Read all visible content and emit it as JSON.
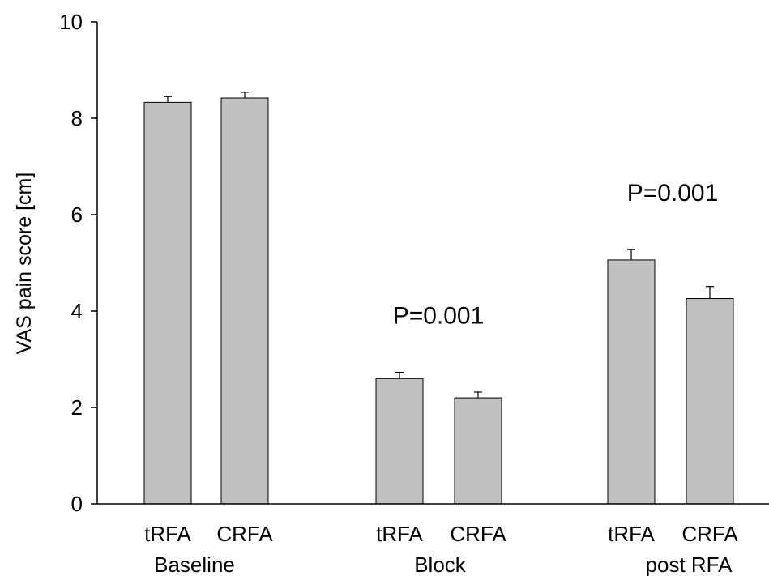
{
  "chart_data": {
    "type": "bar",
    "title": "",
    "ylabel": "VAS pain score [cm]",
    "ylim": [
      0,
      10
    ],
    "yticks": [
      0,
      2,
      4,
      6,
      8,
      10
    ],
    "ytick_labels": [
      "0",
      "2",
      "4",
      "6",
      "8",
      "10"
    ],
    "grid": false,
    "legend": "none",
    "colors": {
      "bar_fill": "#c0c0c0",
      "bar_stroke": "#000000",
      "axis": "#000000"
    },
    "groups": [
      {
        "label": "Baseline",
        "bars": [
          {
            "category": "tRFA",
            "value": 8.33,
            "error": 0.12
          },
          {
            "category": "CRFA",
            "value": 8.42,
            "error": 0.12
          }
        ],
        "annotation": ""
      },
      {
        "label": "Block",
        "bars": [
          {
            "category": "tRFA",
            "value": 2.6,
            "error": 0.13
          },
          {
            "category": "CRFA",
            "value": 2.2,
            "error": 0.12
          }
        ],
        "annotation": "P=0.001"
      },
      {
        "label": "post RFA",
        "bars": [
          {
            "category": "tRFA",
            "value": 5.06,
            "error": 0.22
          },
          {
            "category": "CRFA",
            "value": 4.26,
            "error": 0.25
          }
        ],
        "annotation": "P=0.001"
      }
    ]
  }
}
